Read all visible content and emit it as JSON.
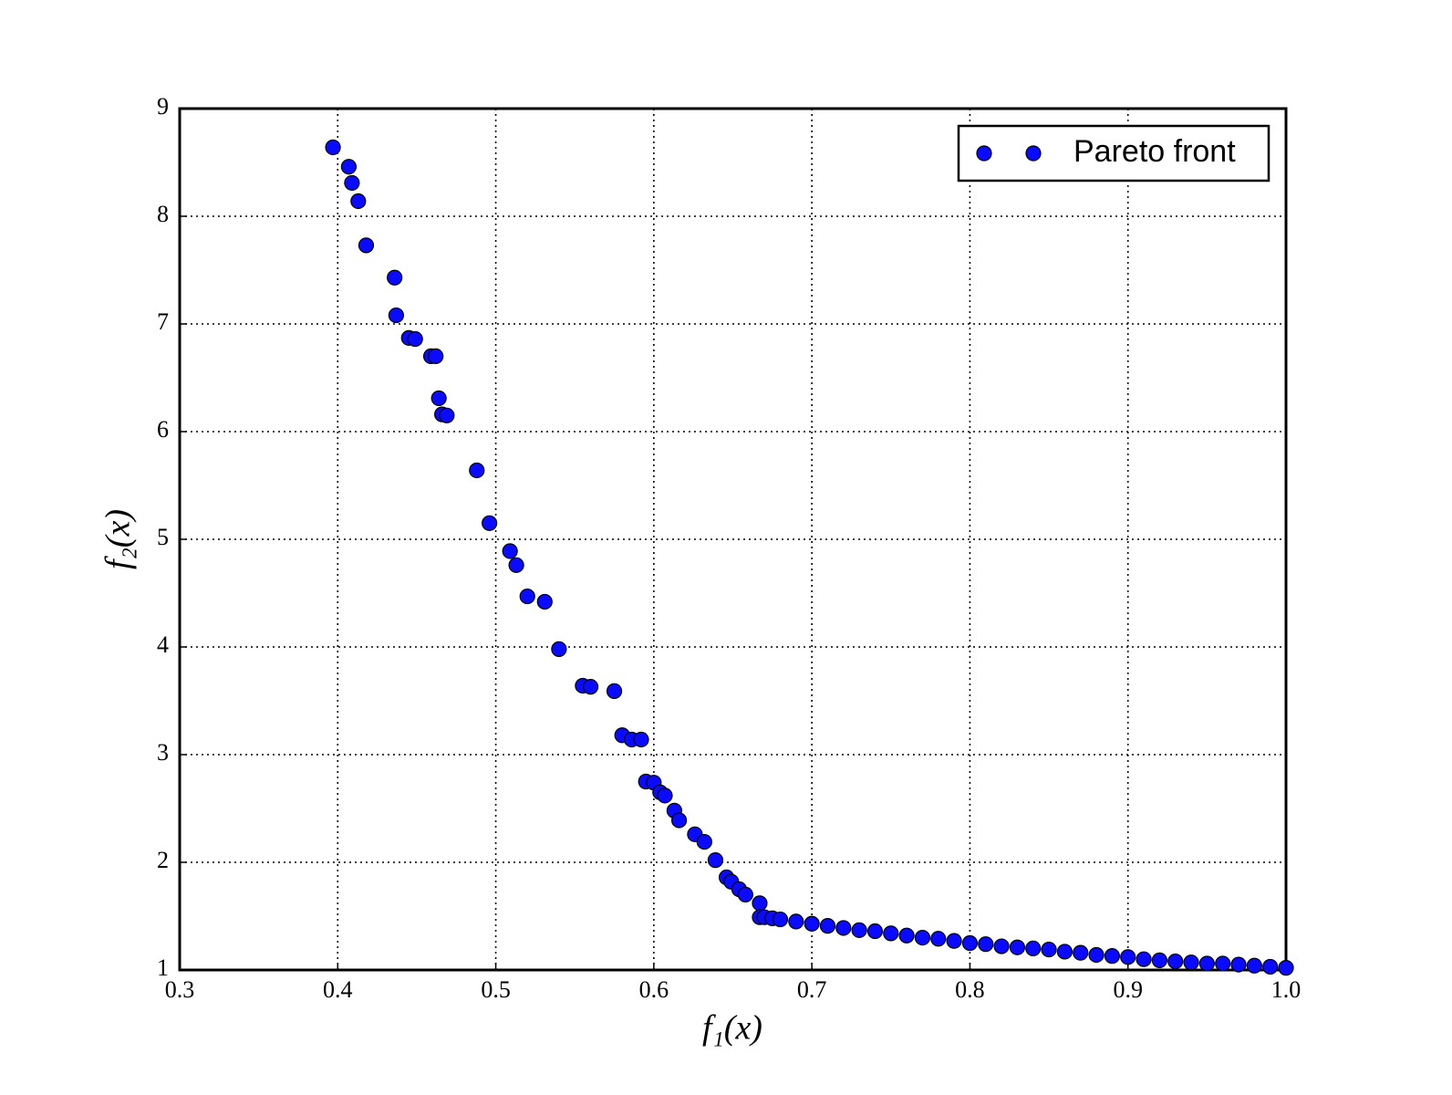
{
  "chart_data": {
    "type": "scatter",
    "x_label": "f₁(x)",
    "y_label": "f₂(x)",
    "xlim": [
      0.3,
      1.0
    ],
    "ylim": [
      1,
      9
    ],
    "xticks": [
      0.3,
      0.4,
      0.5,
      0.6,
      0.7,
      0.8,
      0.9,
      {
        "value": 1,
        "label": "1.0"
      }
    ],
    "yticks": [
      1,
      2,
      3,
      4,
      5,
      6,
      7,
      8,
      9
    ],
    "grid": true,
    "legend": "upper right",
    "series": [
      {
        "name": "Pareto front",
        "color": "#0a0aff",
        "x": [
          0.397,
          0.407,
          0.409,
          0.413,
          0.418,
          0.436,
          0.437,
          0.445,
          0.449,
          0.459,
          0.462,
          0.464,
          0.466,
          0.469,
          0.488,
          0.496,
          0.509,
          0.513,
          0.52,
          0.531,
          0.54,
          0.555,
          0.56,
          0.575,
          0.58,
          0.586,
          0.592,
          0.595,
          0.6,
          0.604,
          0.607,
          0.613,
          0.616,
          0.626,
          0.632,
          0.639,
          0.646,
          0.649,
          0.654,
          0.658,
          0.667,
          0.667,
          0.67,
          0.675,
          0.68,
          0.69,
          0.7,
          0.71,
          0.72,
          0.73,
          0.74,
          0.75,
          0.76,
          0.77,
          0.78,
          0.79,
          0.8,
          0.81,
          0.82,
          0.83,
          0.84,
          0.85,
          0.86,
          0.87,
          0.88,
          0.89,
          0.9,
          0.91,
          0.92,
          0.93,
          0.94,
          0.95,
          0.96,
          0.97,
          0.98,
          0.99,
          1.0
        ],
        "y": [
          8.64,
          8.46,
          8.31,
          8.14,
          7.73,
          7.43,
          7.08,
          6.87,
          6.86,
          6.7,
          6.7,
          6.31,
          6.16,
          6.15,
          5.64,
          5.15,
          4.89,
          4.76,
          4.47,
          4.42,
          3.98,
          3.64,
          3.63,
          3.59,
          3.18,
          3.14,
          3.14,
          2.75,
          2.74,
          2.65,
          2.62,
          2.48,
          2.39,
          2.26,
          2.19,
          2.02,
          1.86,
          1.82,
          1.75,
          1.7,
          1.62,
          1.49,
          1.49,
          1.48,
          1.47,
          1.45,
          1.43,
          1.41,
          1.39,
          1.37,
          1.36,
          1.34,
          1.32,
          1.3,
          1.29,
          1.27,
          1.25,
          1.24,
          1.22,
          1.21,
          1.2,
          1.19,
          1.17,
          1.16,
          1.14,
          1.13,
          1.12,
          1.1,
          1.09,
          1.08,
          1.07,
          1.06,
          1.06,
          1.05,
          1.04,
          1.03,
          1.02
        ]
      }
    ]
  }
}
